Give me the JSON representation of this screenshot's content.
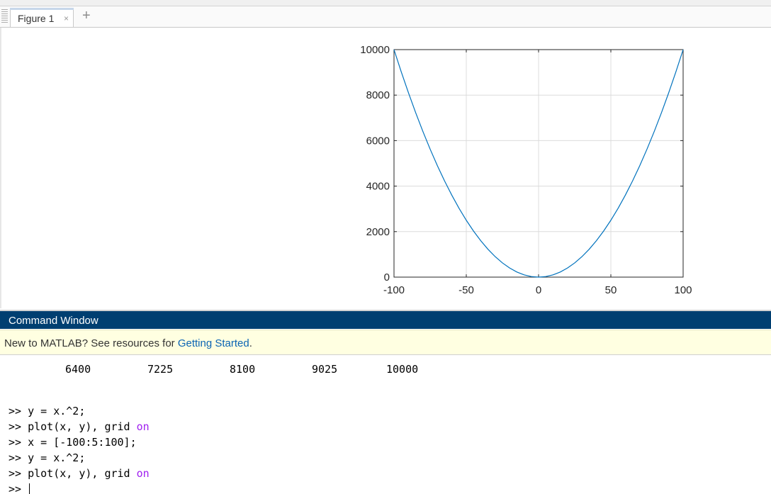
{
  "tab": {
    "label": "Figure 1",
    "close_glyph": "×",
    "add_glyph": "+"
  },
  "figure": {
    "chart_data": {
      "type": "line",
      "title": "",
      "xlabel": "",
      "ylabel": "",
      "xlim": [
        -100,
        100
      ],
      "ylim": [
        0,
        10000
      ],
      "xticks": [
        -100,
        -50,
        0,
        50,
        100
      ],
      "xtick_labels": [
        "-100",
        "-50",
        "0",
        "50",
        "100"
      ],
      "yticks": [
        0,
        2000,
        4000,
        6000,
        8000,
        10000
      ],
      "ytick_labels": [
        "0",
        "2000",
        "4000",
        "6000",
        "8000",
        "10000"
      ],
      "grid": true,
      "series": [
        {
          "color": "#0072bd",
          "x": [
            -100,
            -95,
            -90,
            -85,
            -80,
            -75,
            -70,
            -65,
            -60,
            -55,
            -50,
            -45,
            -40,
            -35,
            -30,
            -25,
            -20,
            -15,
            -10,
            -5,
            0,
            5,
            10,
            15,
            20,
            25,
            30,
            35,
            40,
            45,
            50,
            55,
            60,
            65,
            70,
            75,
            80,
            85,
            90,
            95,
            100
          ],
          "y": [
            10000,
            9025,
            8100,
            7225,
            6400,
            5625,
            4900,
            4225,
            3600,
            3025,
            2500,
            2025,
            1600,
            1225,
            900,
            625,
            400,
            225,
            100,
            25,
            0,
            25,
            100,
            225,
            400,
            625,
            900,
            1225,
            1600,
            2025,
            2500,
            3025,
            3600,
            4225,
            4900,
            5625,
            6400,
            7225,
            8100,
            9025,
            10000
          ]
        }
      ]
    }
  },
  "command_window": {
    "title": "Command Window",
    "banner_prefix": "New to MATLAB? See resources for ",
    "banner_link": "Getting Started",
    "banner_suffix": ".",
    "output_values": [
      "6400",
      "7225",
      "8100",
      "9025",
      "10000"
    ],
    "prompt": ">> ",
    "lines": [
      {
        "code": "y = x.^2;",
        "keyword": ""
      },
      {
        "code": "plot(x, y), grid ",
        "keyword": "on"
      },
      {
        "code": "x = [-100:5:100];",
        "keyword": ""
      },
      {
        "code": "y = x.^2;",
        "keyword": ""
      },
      {
        "code": "plot(x, y), grid ",
        "keyword": "on"
      }
    ]
  },
  "colors": {
    "cmd_header_bg": "#003f71",
    "banner_bg": "#ffffe1",
    "link": "#0b64b3",
    "keyword": "#a020f0",
    "line": "#0072bd"
  }
}
